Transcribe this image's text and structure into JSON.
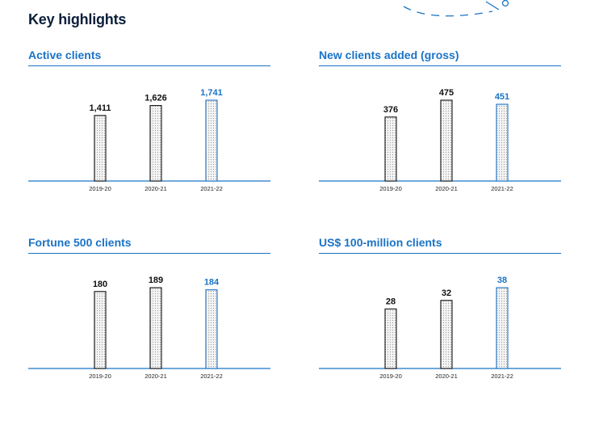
{
  "page": {
    "title": "Key highlights"
  },
  "colors": {
    "accent": "#1a73c7",
    "bar_past": "#111111",
    "bar_current": "#1a73c7",
    "fill": "#d9d9d9"
  },
  "chart_data": [
    {
      "type": "bar",
      "title": "Active clients",
      "categories": [
        "2019-20",
        "2020-21",
        "2021-22"
      ],
      "values": [
        1411,
        1626,
        1741
      ],
      "labels": [
        "1,411",
        "1,626",
        "1,741"
      ],
      "highlight_index": 2,
      "ylim": [
        0,
        1741
      ]
    },
    {
      "type": "bar",
      "title": "New clients added (gross)",
      "categories": [
        "2019-20",
        "2020-21",
        "2021-22"
      ],
      "values": [
        376,
        475,
        451
      ],
      "labels": [
        "376",
        "475",
        "451"
      ],
      "highlight_index": 2,
      "ylim": [
        0,
        475
      ]
    },
    {
      "type": "bar",
      "title": "Fortune 500 clients",
      "categories": [
        "2019-20",
        "2020-21",
        "2021-22"
      ],
      "values": [
        180,
        189,
        184
      ],
      "labels": [
        "180",
        "189",
        "184"
      ],
      "highlight_index": 2,
      "ylim": [
        0,
        189
      ]
    },
    {
      "type": "bar",
      "title": "US$ 100-million clients",
      "categories": [
        "2019-20",
        "2020-21",
        "2021-22"
      ],
      "values": [
        28,
        32,
        38
      ],
      "labels": [
        "28",
        "32",
        "38"
      ],
      "highlight_index": 2,
      "ylim": [
        0,
        38
      ]
    }
  ]
}
